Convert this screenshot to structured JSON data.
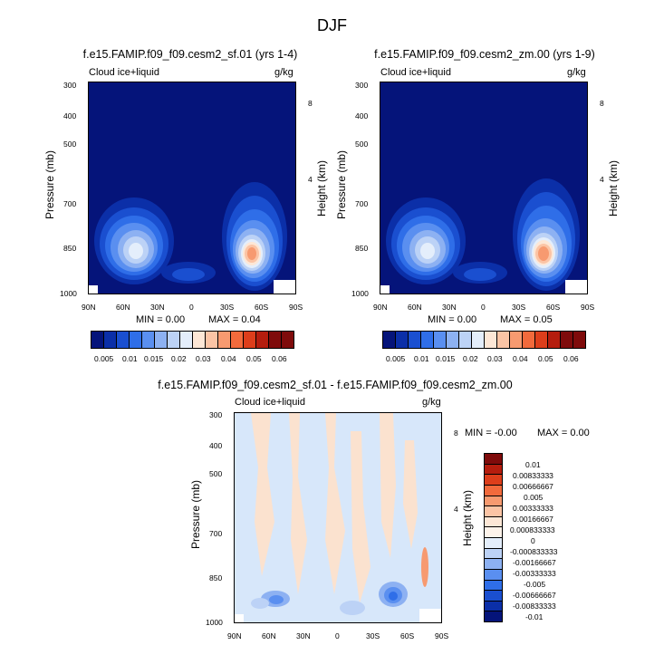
{
  "suptitle": "DJF",
  "palette": {
    "c1": "#05147a",
    "c2": "#0b2fa8",
    "c3": "#1a4fd0",
    "c4": "#2f6ee8",
    "c5": "#5a8ff0",
    "c6": "#8db1f2",
    "c7": "#bcd2f6",
    "c8": "#e4eefb",
    "w1": "#fde7d6",
    "w2": "#fbc4a5",
    "w3": "#f79a70",
    "w4": "#f26a3c",
    "w5": "#dd3e1b",
    "w6": "#b51d0e",
    "w7": "#7f0b0b",
    "diff_bg": "#d7e7fa",
    "diff_pos": "#fbe2cf"
  },
  "axes": {
    "xticks": [
      "90N",
      "60N",
      "30N",
      "0",
      "30S",
      "60S",
      "90S"
    ],
    "pressure_ticks": [
      "300",
      "400",
      "500",
      "700",
      "850",
      "1000"
    ],
    "height_ticks": [
      "8",
      "4"
    ],
    "left_label": "Pressure (mb)",
    "right_label": "Height (km)"
  },
  "panels": [
    {
      "title": "f.e15.FAMIP.f09_f09.cesm2_sf.01 (yrs 1-4)",
      "left_label": "Cloud ice+liquid",
      "right_label": "g/kg",
      "min_text": "MIN =   0.00",
      "max_text": "MAX =   0.04"
    },
    {
      "title": "f.e15.FAMIP.f09_f09.cesm2_zm.00 (yrs 1-9)",
      "left_label": "Cloud ice+liquid",
      "right_label": "g/kg",
      "min_text": "MIN =   0.00",
      "max_text": "MAX =   0.05"
    },
    {
      "title": "f.e15.FAMIP.f09_f09.cesm2_sf.01 - f.e15.FAMIP.f09_f09.cesm2_zm.00",
      "left_label": "Cloud ice+liquid",
      "right_label": "g/kg",
      "min_text": "MIN =  -0.00",
      "max_text": "MAX =   0.00"
    }
  ],
  "colorbar_main": [
    "0.005",
    "0.01",
    "0.015",
    "0.02",
    "0.03",
    "0.04",
    "0.05",
    "0.06"
  ],
  "colorbar_diff": [
    "0.01",
    "0.00833333",
    "0.00666667",
    "0.005",
    "0.00333333",
    "0.00166667",
    "0.000833333",
    "0",
    "-0.000833333",
    "-0.00166667",
    "-0.00333333",
    "-0.005",
    "-0.00666667",
    "-0.00833333",
    "-0.01"
  ],
  "chart_data": [
    {
      "type": "heatmap",
      "title": "f.e15.FAMIP.f09_f09.cesm2_sf.01 (yrs 1-4)",
      "variable": "Cloud ice+liquid",
      "units": "g/kg",
      "xlabel": "",
      "ylabel": "Pressure (mb)",
      "y2label": "Height (km)",
      "x_range": [
        "90N",
        "90S"
      ],
      "ylim": [
        1000,
        300
      ],
      "features": [
        {
          "lat": "55N",
          "pressure": 860,
          "value": 0.02
        },
        {
          "lat": "55S",
          "pressure": 860,
          "value": 0.04
        }
      ],
      "min": 0.0,
      "max": 0.04
    },
    {
      "type": "heatmap",
      "title": "f.e15.FAMIP.f09_f09.cesm2_zm.00 (yrs 1-9)",
      "variable": "Cloud ice+liquid",
      "units": "g/kg",
      "xlabel": "",
      "ylabel": "Pressure (mb)",
      "y2label": "Height (km)",
      "x_range": [
        "90N",
        "90S"
      ],
      "ylim": [
        1000,
        300
      ],
      "features": [
        {
          "lat": "55N",
          "pressure": 860,
          "value": 0.02
        },
        {
          "lat": "55S",
          "pressure": 860,
          "value": 0.04
        }
      ],
      "min": 0.0,
      "max": 0.05
    },
    {
      "type": "heatmap",
      "title": "f.e15.FAMIP.f09_f09.cesm2_sf.01 - f.e15.FAMIP.f09_f09.cesm2_zm.00",
      "variable": "Cloud ice+liquid",
      "units": "g/kg",
      "xlabel": "",
      "ylabel": "Pressure (mb)",
      "y2label": "Height (km)",
      "x_range": [
        "90N",
        "90S"
      ],
      "ylim": [
        1000,
        300
      ],
      "min": -0.0,
      "max": 0.0
    }
  ]
}
